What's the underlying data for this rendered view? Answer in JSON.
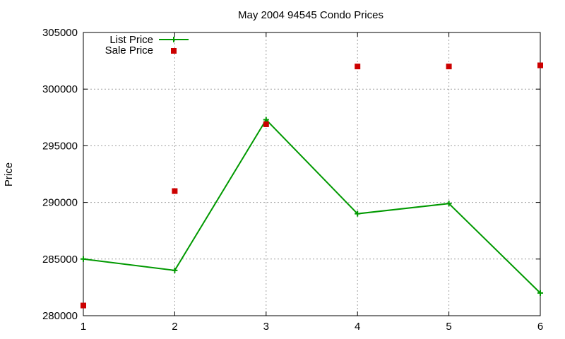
{
  "chart_data": {
    "type": "line",
    "title": "May 2004 94545 Condo Prices",
    "xlabel": "",
    "ylabel": "Price",
    "xlim": [
      1,
      6
    ],
    "ylim": [
      280000,
      305000
    ],
    "x_ticks": [
      "1",
      "2",
      "3",
      "4",
      "5",
      "6"
    ],
    "y_ticks": [
      "280000",
      "285000",
      "290000",
      "295000",
      "300000",
      "305000"
    ],
    "grid": true,
    "legend_position": "top-left",
    "series": [
      {
        "name": "List Price",
        "style": "line+cross",
        "color": "#009900",
        "x": [
          1,
          2,
          3,
          4,
          5,
          6
        ],
        "y": [
          285000,
          284000,
          297300,
          289000,
          289900,
          282000
        ]
      },
      {
        "name": "Sale Price",
        "style": "square",
        "color": "#cc0000",
        "x": [
          1,
          2,
          3,
          4,
          5,
          6
        ],
        "y": [
          280900,
          291000,
          296900,
          302000,
          302000,
          302100
        ]
      }
    ]
  }
}
